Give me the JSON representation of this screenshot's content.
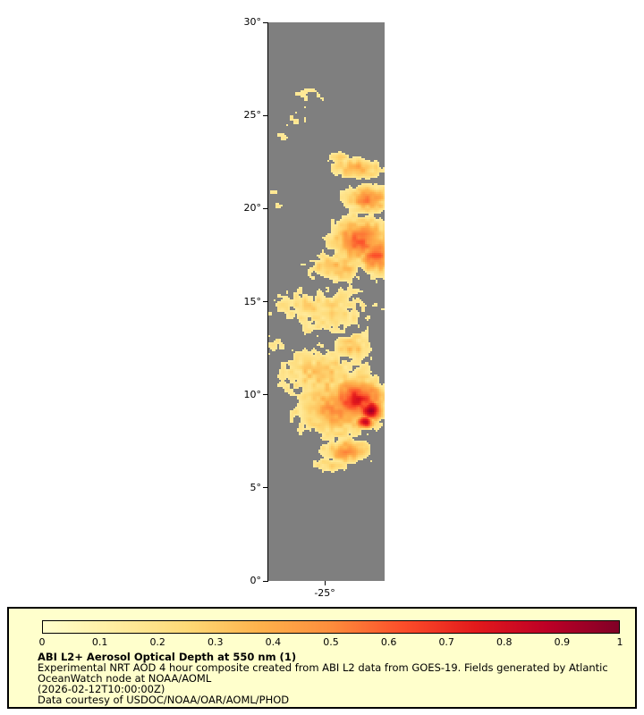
{
  "map": {
    "y_axis": {
      "ticks": [
        {
          "label": "30°",
          "value": 30
        },
        {
          "label": "25°",
          "value": 25
        },
        {
          "label": "20°",
          "value": 20
        },
        {
          "label": "15°",
          "value": 15
        },
        {
          "label": "10°",
          "value": 10
        },
        {
          "label": "5°",
          "value": 5
        },
        {
          "label": "0°",
          "value": 0
        }
      ]
    },
    "x_axis": {
      "ticks": [
        {
          "label": "-25°",
          "x_frac": 0.485
        }
      ]
    }
  },
  "colorbar": {
    "tick_labels": [
      "0",
      "0.1",
      "0.2",
      "0.3",
      "0.4",
      "0.5",
      "0.6",
      "0.7",
      "0.8",
      "0.9",
      "1"
    ],
    "stops": [
      "#ffffcc",
      "#ffeda0",
      "#fed976",
      "#feb24c",
      "#fd8d3c",
      "#fc4e2a",
      "#e31a1c",
      "#bd0026",
      "#800026"
    ]
  },
  "caption": {
    "title": "ABI L2+ Aerosol Optical Depth at 550 nm (1)",
    "subtitle_line1": "Experimental NRT AOD 4 hour composite created from ABI L2 data from GOES-19. Fields generated by Atlantic",
    "subtitle_line2": "OceanWatch node at NOAA/AOML",
    "timestamp": "(2026-02-12T10:00:00Z)",
    "credit": "Data courtesy of USDOC/NOAA/OAR/AOML/PHOD"
  },
  "chart_data": {
    "type": "heatmap",
    "title": "ABI L2+ Aerosol Optical Depth at 550 nm (1)",
    "variable": "Aerosol Optical Depth at 550 nm",
    "colormap": "YlOrRd",
    "colorbar_range": [
      0,
      1
    ],
    "colorbar_ticks": [
      0,
      0.1,
      0.2,
      0.3,
      0.4,
      0.5,
      0.6,
      0.7,
      0.8,
      0.9,
      1
    ],
    "lat_range_deg": [
      0,
      30
    ],
    "longitude_tick_deg": -25,
    "no_data_color": "#7f7f7f",
    "plumes": [
      {
        "x": 0.35,
        "lat": 25.92,
        "rx": 0.154,
        "rlat": 0.77,
        "aod": 0.18
      },
      {
        "x": 0.23,
        "lat": 24.72,
        "rx": 0.108,
        "rlat": 0.48,
        "aod": 0.16
      },
      {
        "x": 0.14,
        "lat": 23.9,
        "rx": 0.092,
        "rlat": 0.38,
        "aod": 0.15
      },
      {
        "x": 0.054,
        "lat": 20.98,
        "rx": 0.062,
        "rlat": 0.29,
        "aod": 0.16
      },
      {
        "x": 0.077,
        "lat": 20.16,
        "rx": 0.046,
        "rlat": 0.24,
        "aod": 0.15
      },
      {
        "x": 0.754,
        "lat": 22.18,
        "rx": 0.2,
        "rlat": 0.67,
        "aod": 0.42
      },
      {
        "x": 0.615,
        "lat": 22.8,
        "rx": 0.108,
        "rlat": 0.38,
        "aod": 0.3
      },
      {
        "x": 0.869,
        "lat": 20.54,
        "rx": 0.185,
        "rlat": 0.77,
        "aod": 0.5
      },
      {
        "x": 0.792,
        "lat": 18.24,
        "rx": 0.262,
        "rlat": 1.25,
        "aod": 0.55
      },
      {
        "x": 0.923,
        "lat": 17.52,
        "rx": 0.154,
        "rlat": 1.0,
        "aod": 0.6
      },
      {
        "x": 0.592,
        "lat": 16.9,
        "rx": 0.231,
        "rlat": 0.86,
        "aod": 0.35
      },
      {
        "x": 0.485,
        "lat": 14.5,
        "rx": 0.462,
        "rlat": 1.34,
        "aod": 0.26
      },
      {
        "x": 0.154,
        "lat": 14.88,
        "rx": 0.154,
        "rlat": 0.58,
        "aod": 0.2
      },
      {
        "x": 0.092,
        "lat": 12.67,
        "rx": 0.123,
        "rlat": 0.86,
        "aod": 0.18
      },
      {
        "x": 0.73,
        "lat": 12.48,
        "rx": 0.18,
        "rlat": 1.0,
        "aod": 0.3
      },
      {
        "x": 0.477,
        "lat": 11.04,
        "rx": 0.423,
        "rlat": 1.54,
        "aod": 0.3
      },
      {
        "x": 0.615,
        "lat": 9.36,
        "rx": 0.369,
        "rlat": 1.63,
        "aod": 0.45
      },
      {
        "x": 0.762,
        "lat": 9.74,
        "rx": 0.231,
        "rlat": 1.15,
        "aod": 0.72
      },
      {
        "x": 0.885,
        "lat": 9.17,
        "rx": 0.1,
        "rlat": 0.53,
        "aod": 0.98
      },
      {
        "x": 0.831,
        "lat": 8.54,
        "rx": 0.077,
        "rlat": 0.38,
        "aod": 0.85
      },
      {
        "x": 0.385,
        "lat": 8.64,
        "rx": 0.138,
        "rlat": 0.58,
        "aod": 0.3
      },
      {
        "x": 0.308,
        "lat": 9.84,
        "rx": 0.123,
        "rlat": 0.48,
        "aod": 0.25
      },
      {
        "x": 0.685,
        "lat": 6.96,
        "rx": 0.215,
        "rlat": 0.62,
        "aod": 0.5
      },
      {
        "x": 0.546,
        "lat": 6.19,
        "rx": 0.154,
        "rlat": 0.43,
        "aod": 0.32
      }
    ]
  }
}
